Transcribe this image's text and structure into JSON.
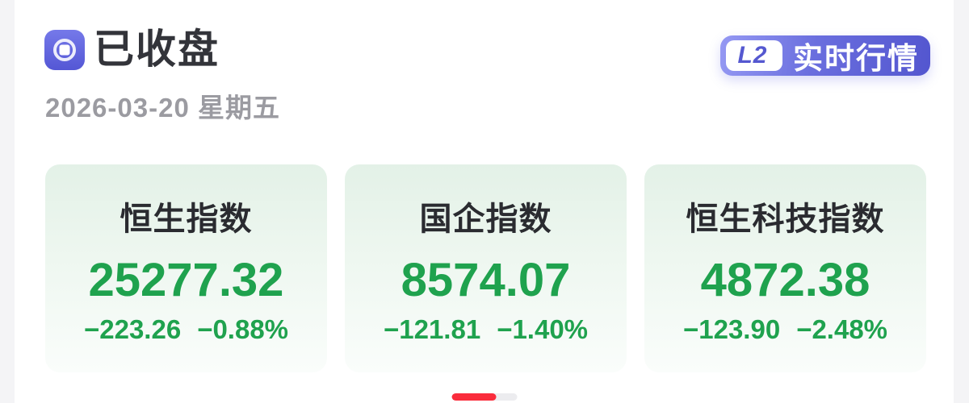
{
  "header": {
    "status_title": "已收盘",
    "date": "2026-03-20 星期五",
    "badge": {
      "level": "L2",
      "label": "实时行情"
    }
  },
  "indices": [
    {
      "name": "恒生指数",
      "value": "25277.32",
      "change": "−223.26",
      "change_pct": "−0.88%"
    },
    {
      "name": "国企指数",
      "value": "8574.07",
      "change": "−121.81",
      "change_pct": "−1.40%"
    },
    {
      "name": "恒生科技指数",
      "value": "4872.38",
      "change": "−123.90",
      "change_pct": "−2.48%"
    }
  ],
  "pagination": {
    "total_pages": 2,
    "active_page": 1
  },
  "colors": {
    "down_green": "#1fa24e",
    "pager_active_red": "#fa2c3c",
    "pager_inactive_gray": "#ececef",
    "badge_purple_start": "#9599f3",
    "badge_purple_end": "#5356cf",
    "icon_purple_top": "#7579e9",
    "icon_purple_bottom": "#5457d5",
    "card_green_top": "#e3f1e7",
    "card_green_bottom": "#fafdfb",
    "title_dark": "#33343a",
    "date_gray": "#9b9ba1",
    "page_margin_gray": "#f4f4f6"
  }
}
